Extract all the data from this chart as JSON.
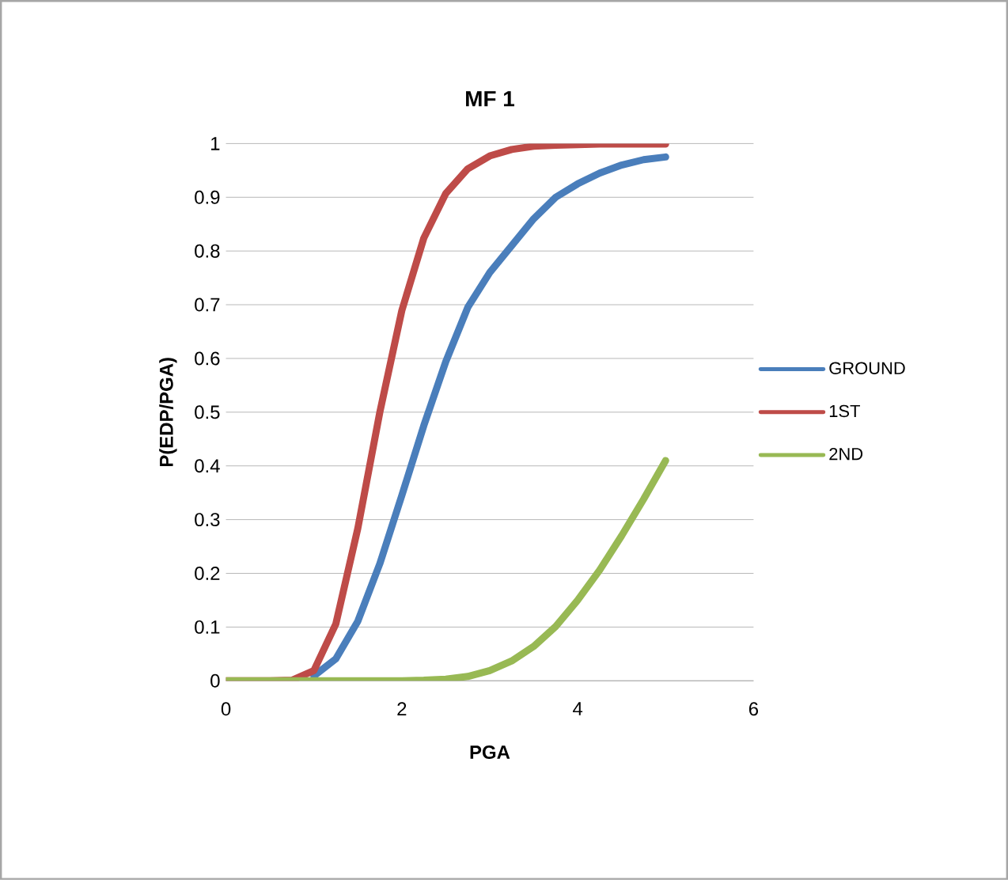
{
  "chart_data": {
    "type": "line",
    "title": "MF 1",
    "xlabel": "PGA",
    "ylabel": "P(EDP/PGA)",
    "x": [
      0,
      0.25,
      0.5,
      0.75,
      1.0,
      1.25,
      1.5,
      1.75,
      2.0,
      2.25,
      2.5,
      2.75,
      3.0,
      3.25,
      3.5,
      3.75,
      4.0,
      4.25,
      4.5,
      4.75,
      5.0
    ],
    "series": [
      {
        "name": "GROUND",
        "color": "#4a7ebb",
        "values": [
          null,
          null,
          null,
          null,
          0.009,
          0.041,
          0.111,
          0.218,
          0.345,
          0.475,
          0.594,
          0.695,
          0.76,
          0.81,
          0.86,
          0.9,
          0.925,
          0.945,
          0.96,
          0.97,
          0.975
        ]
      },
      {
        "name": "1ST",
        "color": "#be4b48",
        "values": [
          0,
          0,
          0,
          0.001,
          0.019,
          0.106,
          0.284,
          0.5,
          0.689,
          0.824,
          0.907,
          0.953,
          0.977,
          0.989,
          0.995,
          0.997,
          0.998,
          0.999,
          0.999,
          0.999,
          0.999
        ]
      },
      {
        "name": "2ND",
        "color": "#98b954",
        "values": [
          0,
          0,
          0,
          0,
          0,
          0,
          0,
          0,
          0,
          0.001,
          0.003,
          0.008,
          0.019,
          0.037,
          0.064,
          0.101,
          0.15,
          0.206,
          0.27,
          0.338,
          0.41
        ]
      }
    ],
    "xlim": [
      0,
      6
    ],
    "xticks": [
      0,
      2,
      4,
      6
    ],
    "ylim": [
      0,
      1
    ],
    "yticks": [
      0,
      0.1,
      0.2,
      0.3,
      0.4,
      0.5,
      0.6,
      0.7,
      0.8,
      0.9,
      1
    ],
    "grid": "y",
    "legend": "right",
    "marker": "none",
    "line_style": "solid"
  }
}
